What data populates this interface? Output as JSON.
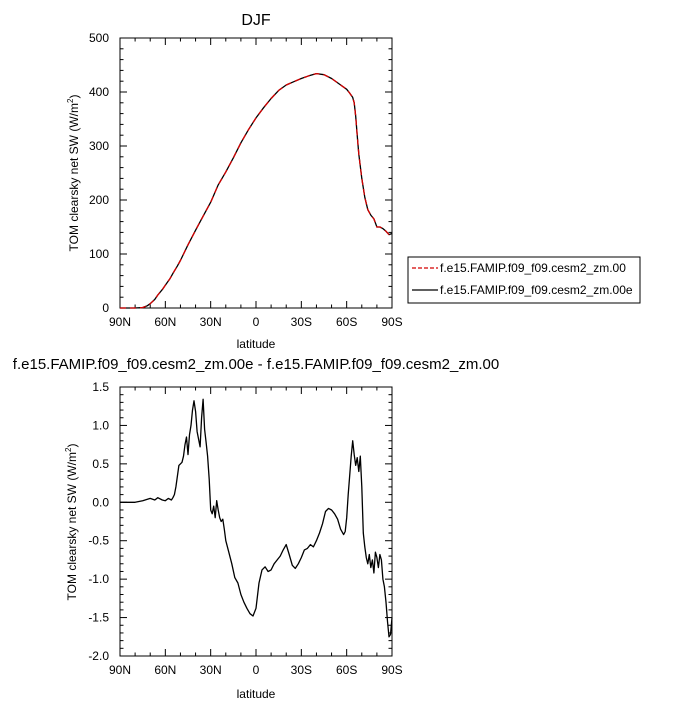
{
  "chart_data": [
    {
      "type": "line",
      "title": "DJF",
      "xlabel": "latitude",
      "ylabel": "TOM clearsky net SW (W/m²)",
      "ylabel_parts": {
        "main": "TOM clearsky net SW (W/m",
        "sup": "2",
        "end": ")"
      },
      "xlim": [
        90,
        -90
      ],
      "ylim": [
        0,
        500
      ],
      "x_ticks": [
        90,
        60,
        30,
        0,
        -30,
        -60,
        -90
      ],
      "x_tick_labels": [
        "90N",
        "60N",
        "30N",
        "0",
        "30S",
        "60S",
        "90S"
      ],
      "y_ticks": [
        0,
        100,
        200,
        300,
        400,
        500
      ],
      "y_tick_labels": [
        "0",
        "100",
        "200",
        "300",
        "400",
        "500"
      ],
      "legend_position": "right",
      "series": [
        {
          "name": "f.e15.FAMIP.f09_f09.cesm2_zm.00",
          "color": "#d40000",
          "dash": "dashed",
          "x": [
            90,
            85,
            80,
            75,
            72,
            70,
            67,
            65,
            62,
            60,
            57,
            55,
            52,
            50,
            45,
            40,
            35,
            30,
            25,
            20,
            15,
            10,
            5,
            0,
            -5,
            -10,
            -15,
            -20,
            -25,
            -30,
            -35,
            -40,
            -45,
            -50,
            -55,
            -60,
            -62,
            -64,
            -65,
            -66,
            -67,
            -68,
            -70,
            -72,
            -74,
            -76,
            -78,
            -80,
            -82,
            -84,
            -86,
            -88,
            -90
          ],
          "y": [
            0,
            0,
            0,
            1,
            4,
            8,
            16,
            24,
            34,
            42,
            54,
            64,
            78,
            88,
            117,
            144,
            170,
            196,
            228,
            252,
            278,
            306,
            330,
            352,
            371,
            388,
            403,
            413,
            419,
            425,
            430,
            434,
            432,
            425,
            415,
            405,
            398,
            390,
            380,
            355,
            320,
            285,
            240,
            205,
            182,
            172,
            165,
            150,
            150,
            147,
            142,
            136,
            138
          ]
        },
        {
          "name": "f.e15.FAMIP.f09_f09.cesm2_zm.00e",
          "color": "#000000",
          "dash": "solid",
          "x": [
            90,
            85,
            80,
            75,
            72,
            70,
            67,
            65,
            62,
            60,
            57,
            55,
            52,
            50,
            45,
            40,
            35,
            30,
            25,
            20,
            15,
            10,
            5,
            0,
            -5,
            -10,
            -15,
            -20,
            -25,
            -30,
            -35,
            -40,
            -45,
            -50,
            -55,
            -60,
            -62,
            -64,
            -65,
            -66,
            -67,
            -68,
            -70,
            -72,
            -74,
            -76,
            -78,
            -80,
            -82,
            -84,
            -86,
            -88,
            -90
          ],
          "y": [
            0,
            0,
            0,
            1,
            4,
            8,
            16,
            24,
            34,
            42,
            54,
            64,
            78,
            88,
            117,
            144,
            170,
            196,
            228,
            252,
            278,
            306,
            330,
            352,
            371,
            388,
            403,
            413,
            419,
            425,
            430,
            434,
            432,
            425,
            415,
            405,
            398,
            390,
            380,
            355,
            320,
            285,
            240,
            205,
            182,
            172,
            165,
            150,
            150,
            147,
            142,
            136,
            138
          ]
        }
      ]
    },
    {
      "type": "line",
      "title": "f.e15.FAMIP.f09_f09.cesm2_zm.00e - f.e15.FAMIP.f09_f09.cesm2_zm.00",
      "xlabel": "latitude",
      "ylabel": "TOM clearsky net SW (W/m²)",
      "ylabel_parts": {
        "main": "TOM clearsky net SW (W/m",
        "sup": "2",
        "end": ")"
      },
      "xlim": [
        90,
        -90
      ],
      "ylim": [
        -2.0,
        1.5
      ],
      "x_ticks": [
        90,
        60,
        30,
        0,
        -30,
        -60,
        -90
      ],
      "x_tick_labels": [
        "90N",
        "60N",
        "30N",
        "0",
        "30S",
        "60S",
        "90S"
      ],
      "y_ticks": [
        -2.0,
        -1.5,
        -1.0,
        -0.5,
        0.0,
        0.5,
        1.0,
        1.5
      ],
      "y_tick_labels": [
        "-2.0",
        "-1.5",
        "-1.0",
        "-0.5",
        "0.0",
        "0.5",
        "1.0",
        "1.5"
      ],
      "series": [
        {
          "color": "#000000",
          "x": [
            90,
            80,
            75,
            70,
            67,
            65,
            62,
            60,
            58,
            56,
            55,
            54,
            53,
            51,
            49,
            48,
            47,
            46,
            45,
            44,
            43,
            42,
            41,
            40,
            39,
            38,
            37,
            36,
            35,
            34,
            33,
            32,
            31,
            30,
            29,
            28,
            27,
            26,
            25,
            24,
            23,
            22,
            21,
            20,
            18,
            16,
            14,
            12,
            10,
            8,
            6,
            4,
            2,
            0,
            -2,
            -4,
            -6,
            -8,
            -10,
            -12,
            -14,
            -16,
            -18,
            -20,
            -22,
            -24,
            -26,
            -28,
            -30,
            -32,
            -34,
            -36,
            -38,
            -40,
            -42,
            -44,
            -46,
            -48,
            -50,
            -52,
            -54,
            -56,
            -58,
            -59,
            -60,
            -61,
            -62,
            -63,
            -64,
            -65,
            -66,
            -67,
            -68,
            -69,
            -70,
            -71,
            -72,
            -73,
            -74,
            -75,
            -76,
            -77,
            -78,
            -79,
            -80,
            -81,
            -82,
            -83,
            -84,
            -85,
            -86,
            -87,
            -88,
            -89,
            -90
          ],
          "y": [
            0.0,
            0.0,
            0.02,
            0.05,
            0.03,
            0.06,
            0.03,
            0.02,
            0.05,
            0.03,
            0.06,
            0.1,
            0.2,
            0.48,
            0.52,
            0.6,
            0.75,
            0.85,
            0.62,
            0.88,
            1.0,
            1.2,
            1.32,
            1.18,
            0.92,
            0.82,
            0.72,
            1.1,
            1.34,
            0.95,
            0.78,
            0.6,
            0.3,
            -0.1,
            -0.15,
            -0.05,
            -0.2,
            0.02,
            -0.1,
            -0.2,
            -0.25,
            -0.22,
            -0.35,
            -0.5,
            -0.65,
            -0.8,
            -0.98,
            -1.05,
            -1.2,
            -1.3,
            -1.38,
            -1.45,
            -1.48,
            -1.38,
            -1.05,
            -0.88,
            -0.84,
            -0.9,
            -0.88,
            -0.8,
            -0.75,
            -0.7,
            -0.62,
            -0.55,
            -0.68,
            -0.82,
            -0.86,
            -0.8,
            -0.72,
            -0.62,
            -0.6,
            -0.55,
            -0.58,
            -0.5,
            -0.4,
            -0.28,
            -0.12,
            -0.08,
            -0.1,
            -0.15,
            -0.22,
            -0.35,
            -0.42,
            -0.38,
            -0.2,
            0.1,
            0.35,
            0.6,
            0.8,
            0.62,
            0.48,
            0.58,
            0.4,
            0.6,
            0.2,
            -0.4,
            -0.58,
            -0.72,
            -0.8,
            -0.68,
            -0.85,
            -0.75,
            -0.92,
            -0.65,
            -0.72,
            -0.85,
            -0.68,
            -0.75,
            -1.0,
            -1.1,
            -1.3,
            -1.55,
            -1.75,
            -1.72,
            -1.5
          ]
        }
      ]
    }
  ]
}
